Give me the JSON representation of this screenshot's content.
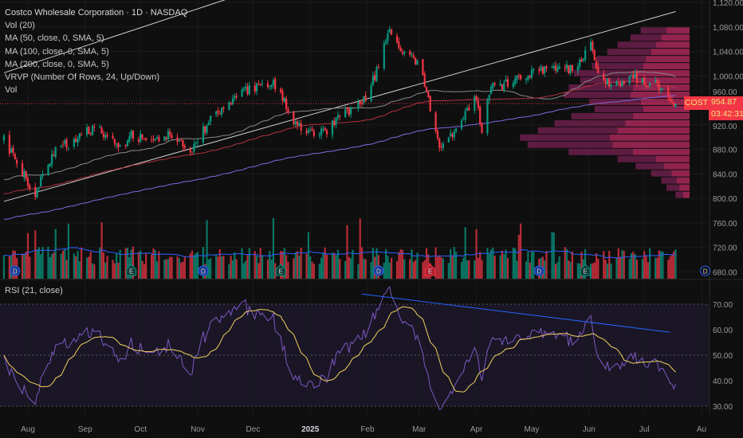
{
  "legend": {
    "title": "Costco Wholesale Corporation · 1D · NASDAQ",
    "indicators": [
      "Vol (20)",
      "MA (50, close, 0, SMA, 5)",
      "MA (100, close, 0, SMA, 5)",
      "MA (200, close, 0, SMA, 5)",
      "VRVP (Number Of Rows, 24, Up/Down)",
      "Vol"
    ]
  },
  "rsi_title": "RSI (21, close)",
  "price_tag": {
    "symbol": "COST",
    "price": "954.87",
    "countdown": "03:42:31"
  },
  "colors": {
    "up": "#089981",
    "down": "#f23645",
    "ma50": "#8a8a8a",
    "ma100": "#b2323f",
    "ma200": "#7b6be0",
    "rsi": "#7e57c2",
    "rsi_ma": "#f2d15f",
    "trend": "#2962ff"
  },
  "chart_data": {
    "type": "candlestick",
    "symbol": "COST",
    "interval": "1D",
    "price_axis_ticks": [
      "1,120.00",
      "1,080.00",
      "1,040.00",
      "1,000.00",
      "960.00",
      "920.00",
      "880.00",
      "840.00",
      "800.00",
      "760.00",
      "720.00",
      "680.00"
    ],
    "price_axis_values": [
      1120,
      1080,
      1040,
      1000,
      960,
      920,
      880,
      840,
      800,
      760,
      720,
      680
    ],
    "rsi_axis_ticks": [
      "70.00",
      "60.00",
      "50.00",
      "40.00",
      "30.00"
    ],
    "rsi_axis_values": [
      70,
      60,
      50,
      40,
      30
    ],
    "time_axis": [
      {
        "label": "Aug",
        "date": "2024-08-01"
      },
      {
        "label": "Sep",
        "date": "2024-09-01"
      },
      {
        "label": "Oct",
        "date": "2024-10-01"
      },
      {
        "label": "Nov",
        "date": "2024-11-01"
      },
      {
        "label": "Dec",
        "date": "2024-12-01"
      },
      {
        "label": "2025",
        "date": "2025-01-01"
      },
      {
        "label": "Feb",
        "date": "2025-02-01"
      },
      {
        "label": "Mar",
        "date": "2025-03-01"
      },
      {
        "label": "Apr",
        "date": "2025-04-01"
      },
      {
        "label": "May",
        "date": "2025-05-01"
      },
      {
        "label": "Jun",
        "date": "2025-06-01"
      },
      {
        "label": "Jul",
        "date": "2025-07-01"
      },
      {
        "label": "Au",
        "date": "2025-08-01"
      }
    ],
    "close_keypoints": [
      [
        "2024-07-19",
        895
      ],
      [
        "2024-07-26",
        860
      ],
      [
        "2024-08-05",
        805
      ],
      [
        "2024-08-08",
        830
      ],
      [
        "2024-08-16",
        880
      ],
      [
        "2024-08-26",
        895
      ],
      [
        "2024-09-05",
        915
      ],
      [
        "2024-09-12",
        905
      ],
      [
        "2024-09-20",
        880
      ],
      [
        "2024-09-27",
        905
      ],
      [
        "2024-10-07",
        890
      ],
      [
        "2024-10-18",
        905
      ],
      [
        "2024-10-28",
        875
      ],
      [
        "2024-11-01",
        895
      ],
      [
        "2024-11-08",
        930
      ],
      [
        "2024-11-18",
        950
      ],
      [
        "2024-11-25",
        975
      ],
      [
        "2024-12-05",
        985
      ],
      [
        "2024-12-12",
        990
      ],
      [
        "2024-12-18",
        960
      ],
      [
        "2024-12-23",
        920
      ],
      [
        "2025-01-03",
        910
      ],
      [
        "2025-01-10",
        910
      ],
      [
        "2025-01-17",
        940
      ],
      [
        "2025-01-24",
        945
      ],
      [
        "2025-01-31",
        965
      ],
      [
        "2025-02-05",
        1000
      ],
      [
        "2025-02-10",
        1050
      ],
      [
        "2025-02-13",
        1078
      ],
      [
        "2025-02-18",
        1040
      ],
      [
        "2025-02-24",
        1030
      ],
      [
        "2025-02-28",
        1020
      ],
      [
        "2025-03-03",
        1000
      ],
      [
        "2025-03-06",
        960
      ],
      [
        "2025-03-12",
        890
      ],
      [
        "2025-03-18",
        900
      ],
      [
        "2025-03-25",
        930
      ],
      [
        "2025-04-01",
        965
      ],
      [
        "2025-04-04",
        900
      ],
      [
        "2025-04-09",
        990
      ],
      [
        "2025-04-15",
        985
      ],
      [
        "2025-04-25",
        1000
      ],
      [
        "2025-05-05",
        1010
      ],
      [
        "2025-05-15",
        1015
      ],
      [
        "2025-05-22",
        1010
      ],
      [
        "2025-05-29",
        1030
      ],
      [
        "2025-06-02",
        1060
      ],
      [
        "2025-06-05",
        1010
      ],
      [
        "2025-06-10",
        990
      ],
      [
        "2025-06-18",
        985
      ],
      [
        "2025-06-25",
        1000
      ],
      [
        "2025-07-01",
        990
      ],
      [
        "2025-07-08",
        985
      ],
      [
        "2025-07-15",
        960
      ],
      [
        "2025-07-18",
        955
      ]
    ],
    "last_close": 954.87,
    "vrvp_rows": {
      "price_top": 1080,
      "price_bottom": 800,
      "up": [
        20,
        24,
        30,
        34,
        38,
        40,
        48,
        45,
        50,
        52,
        40,
        38,
        48,
        55,
        62,
        70,
        66,
        50,
        30,
        22,
        16,
        12,
        10,
        6
      ],
      "down": [
        18,
        22,
        26,
        30,
        34,
        36,
        42,
        40,
        44,
        46,
        38,
        36,
        44,
        50,
        56,
        62,
        60,
        44,
        26,
        20,
        14,
        10,
        8,
        5
      ]
    },
    "channel_lines": [
      [
        [
          "2024-07-19",
          1005
        ],
        [
          "2025-02-25",
          1225
        ]
      ],
      [
        [
          "2024-07-19",
          795
        ],
        [
          "2025-07-18",
          1105
        ]
      ]
    ],
    "rsi_trendline": [
      [
        "2025-01-29",
        74
      ],
      [
        "2025-07-15",
        59
      ]
    ],
    "events": [
      {
        "type": "D",
        "date": "2024-07-25"
      },
      {
        "type": "E",
        "date": "2024-09-26"
      },
      {
        "type": "D",
        "date": "2024-11-04"
      },
      {
        "type": "E",
        "date": "2024-12-16"
      },
      {
        "type": "D",
        "date": "2025-02-07"
      },
      {
        "type": "E",
        "date": "2025-03-07"
      },
      {
        "type": "D",
        "date": "2025-05-05"
      },
      {
        "type": "E",
        "date": "2025-05-30"
      },
      {
        "type": "D",
        "date": "2025-08-03"
      }
    ]
  }
}
